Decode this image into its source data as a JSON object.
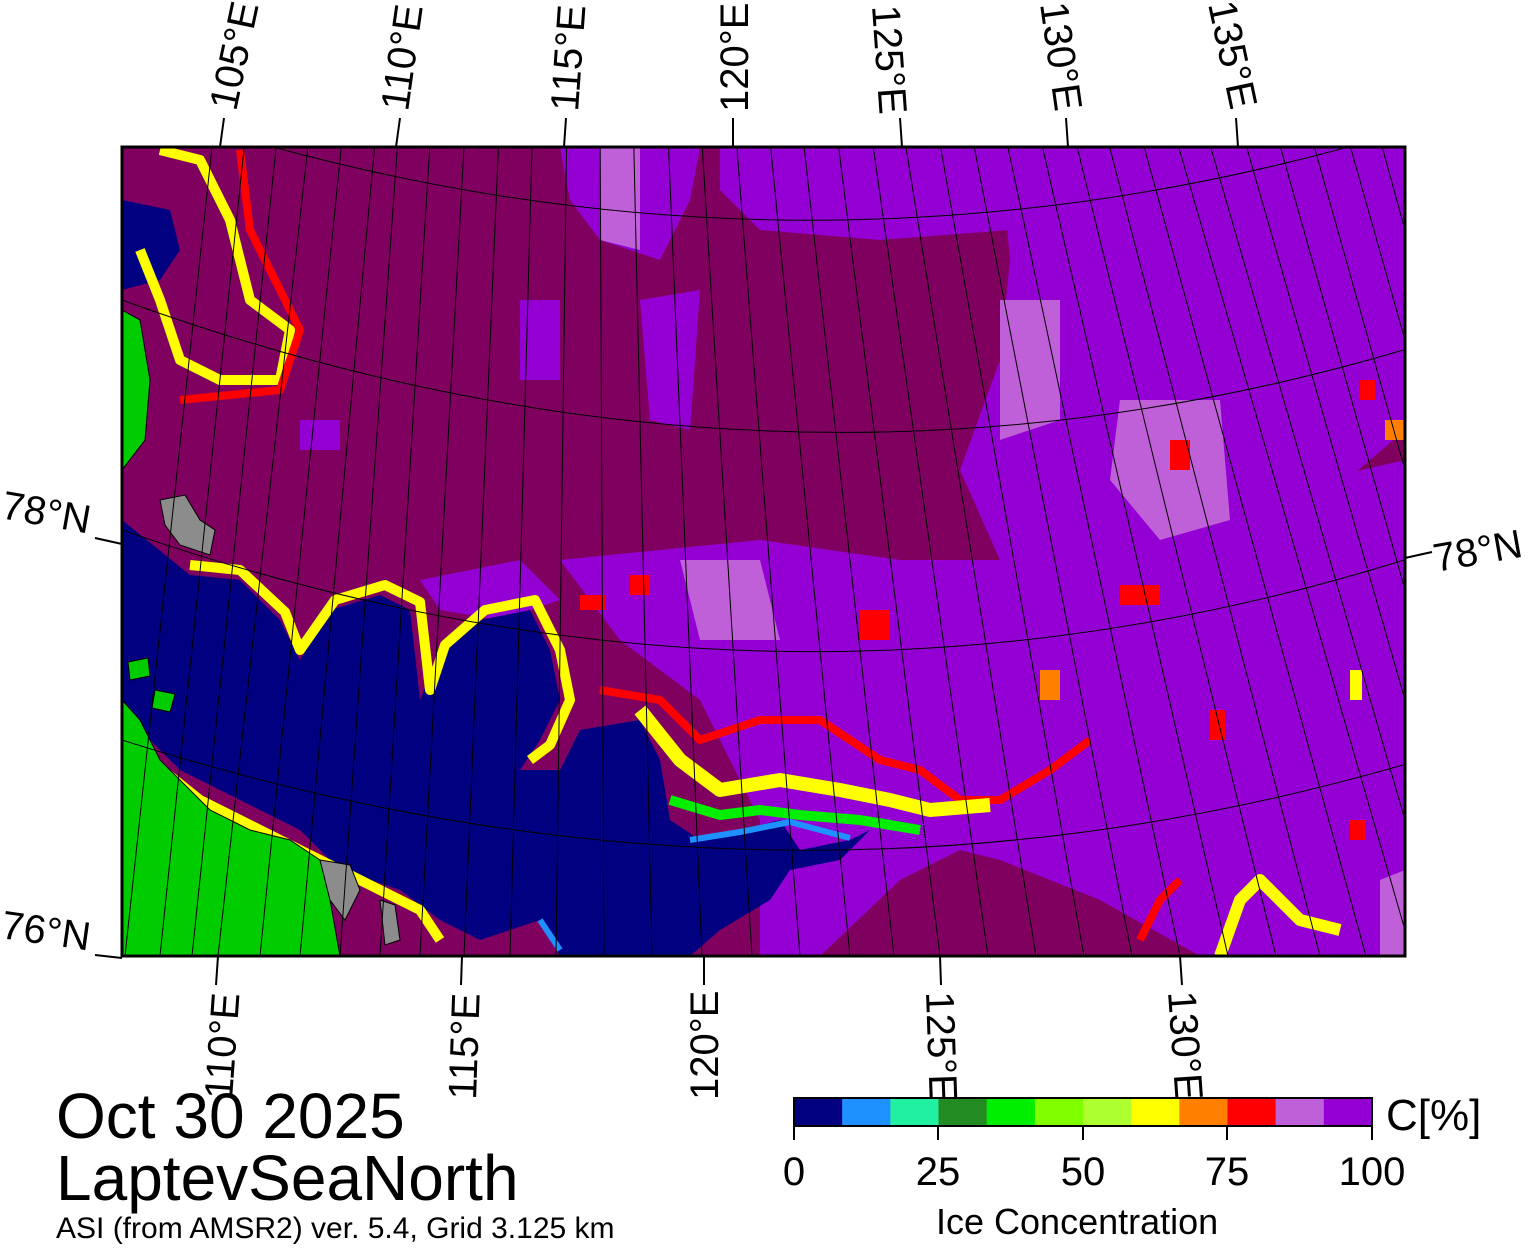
{
  "header": {},
  "map": {
    "top_lon_labels": [
      "105°E",
      "110°E",
      "115°E",
      "120°E",
      "125°E",
      "130°E",
      "135°E"
    ],
    "bottom_lon_labels": [
      "110°E",
      "115°E",
      "120°E",
      "125°E",
      "130°E"
    ],
    "lat_labels_left": [
      "78°N",
      "76°N"
    ],
    "lat_labels_right": [
      "78°N"
    ],
    "colors": {
      "water": "#000080",
      "land": "#00cc00",
      "nodata_gray": "#8c8c8c",
      "ice_full": "#800060",
      "ice_high": "#9400d3",
      "ice_light_purple": "#c060d8",
      "red": "#ff0000",
      "orange": "#ff8000",
      "yellow": "#ffff00",
      "green": "#00ee00",
      "dark_green": "#228b22",
      "cyan": "#20f0a0",
      "blue": "#1e90ff"
    }
  },
  "colorbar": {
    "title": "Ice Concentration",
    "unit": "C[%]",
    "ticks": [
      "0",
      "25",
      "50",
      "75",
      "100"
    ],
    "colors": [
      "#000080",
      "#1e90ff",
      "#20f0a0",
      "#228b22",
      "#00ee00",
      "#7fff00",
      "#adff2f",
      "#ffff00",
      "#ff8000",
      "#ff0000",
      "#c060d8",
      "#9400d3"
    ]
  },
  "footer": {
    "date": "Oct 30 2025",
    "region": "LaptevSeaNorth",
    "source": "ASI (from AMSR2) ver. 5.4,  Grid 3.125 km"
  }
}
